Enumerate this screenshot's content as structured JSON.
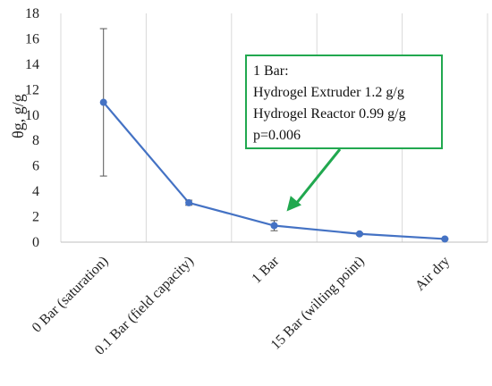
{
  "chart_data": {
    "type": "line",
    "ylabel": "θg, g/g",
    "ylim": [
      0,
      18
    ],
    "yticks": [
      0,
      2,
      4,
      6,
      8,
      10,
      12,
      14,
      16,
      18
    ],
    "grid": "vertical",
    "categories": [
      "0 Bar (saturation)",
      "0.1 Bar (field capacity)",
      "1 Bar",
      "15 Bar (wilting point)",
      "Air dry"
    ],
    "series": [
      {
        "values": [
          11.0,
          3.1,
          1.3,
          0.65,
          0.25
        ],
        "error": [
          5.8,
          0.2,
          0.4,
          0.08,
          0.05
        ],
        "color": "#4472C4"
      }
    ],
    "annotation": {
      "lines": [
        "1 Bar:",
        "Hydrogel Extruder 1.2 g/g",
        "Hydrogel Reactor 0.99 g/g",
        "p=0.006"
      ],
      "target_category": "1 Bar",
      "border_color": "#21A84F",
      "arrow_color": "#21A84F"
    }
  }
}
